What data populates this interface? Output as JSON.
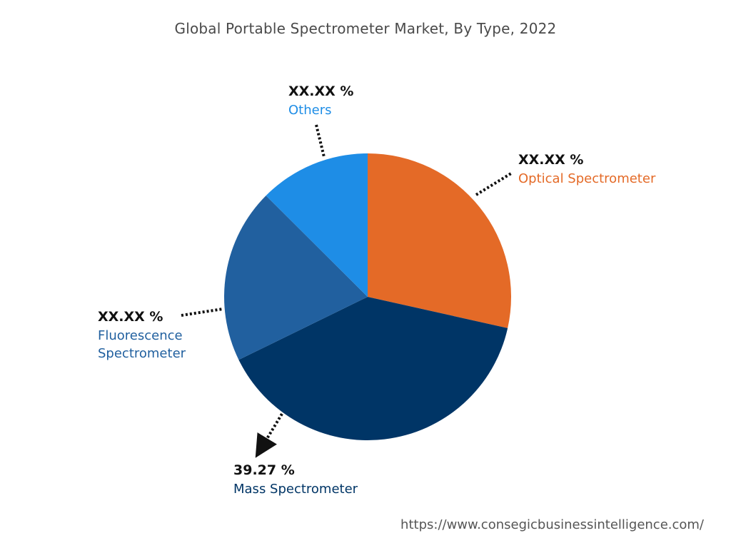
{
  "title": "Global Portable Spectrometer Market, By Type, 2022",
  "source_url": "https://www.consegicbusinessintelligence.com/",
  "chart_data": {
    "type": "pie",
    "title": "Global Portable Spectrometer Market, By Type, 2022",
    "start_angle_deg": 0,
    "direction": "clockwise",
    "slices": [
      {
        "key": "optical",
        "name": "Optical Spectrometer",
        "value": 28.5,
        "display": "XX.XX %",
        "color": "#E46A27"
      },
      {
        "key": "mass",
        "name": "Mass Spectrometer",
        "value": 39.27,
        "display": "39.27 %",
        "color": "#003566"
      },
      {
        "key": "fluorescence",
        "name": "Fluorescence Spectrometer",
        "value": 19.7,
        "display": "XX.XX %",
        "color": "#21609F"
      },
      {
        "key": "others",
        "name": "Others",
        "value": 12.53,
        "display": "XX.XX %",
        "color": "#1E8DE6"
      }
    ]
  }
}
